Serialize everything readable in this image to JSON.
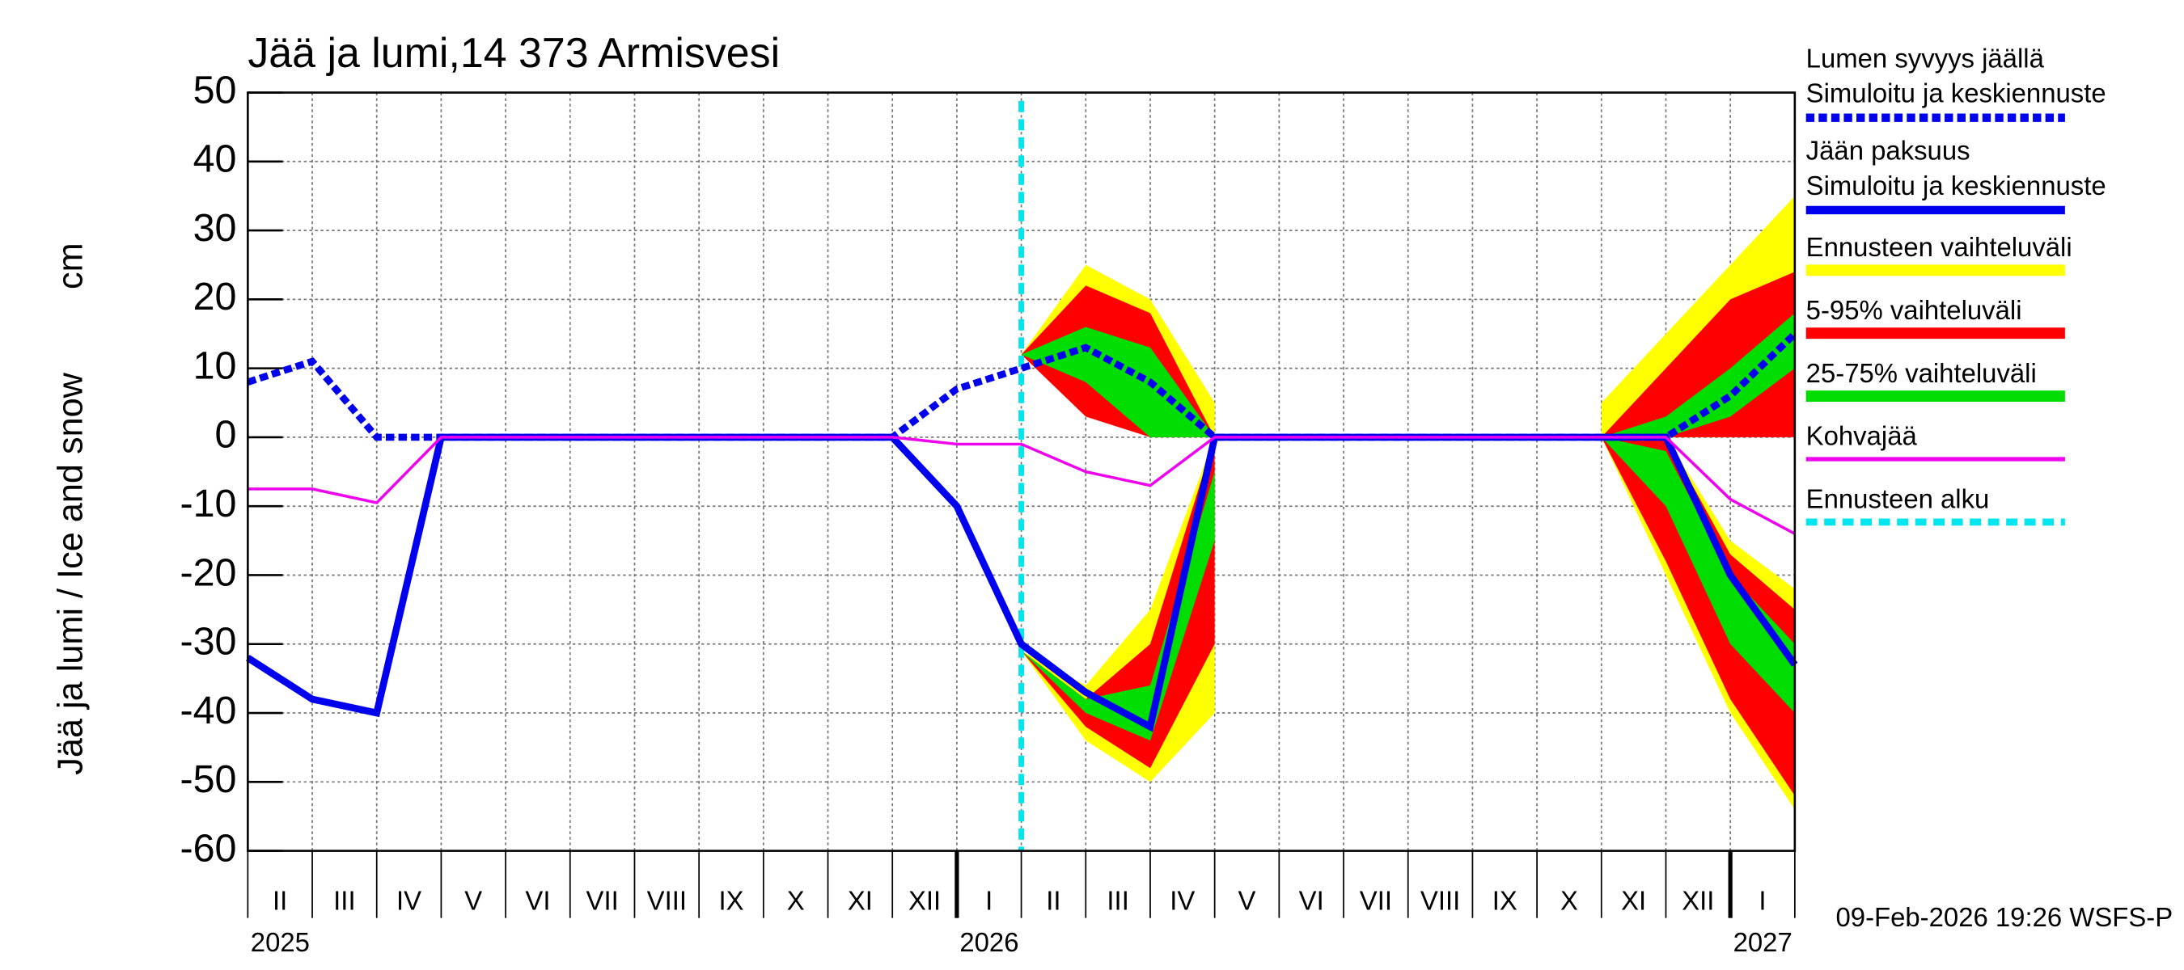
{
  "chart_data": {
    "type": "line",
    "title": "Jää ja lumi,14 373 Armisvesi",
    "y_label": "Jää ja lumi / Ice and snow",
    "y_unit": "cm",
    "footer": "09-Feb-2026 19:26 WSFS-P",
    "x": [
      "2025-02",
      "2025-03",
      "2025-04",
      "2025-05",
      "2025-06",
      "2025-07",
      "2025-08",
      "2025-09",
      "2025-10",
      "2025-11",
      "2025-12",
      "2026-01",
      "2026-02",
      "2026-03",
      "2026-04",
      "2026-05",
      "2026-06",
      "2026-07",
      "2026-08",
      "2026-09",
      "2026-10",
      "2026-11",
      "2026-12",
      "2027-01",
      "2027-02"
    ],
    "xlim": [
      "2025-02",
      "2027-02"
    ],
    "month_labels": [
      "II",
      "III",
      "IV",
      "V",
      "VI",
      "VII",
      "VIII",
      "IX",
      "X",
      "XI",
      "XII",
      "I",
      "II",
      "III",
      "IV",
      "V",
      "VI",
      "VII",
      "VIII",
      "IX",
      "X",
      "XI",
      "XII",
      "I"
    ],
    "year_labels": [
      {
        "value": "2025-02",
        "label": "2025"
      },
      {
        "value": "2026-01",
        "label": "2026"
      },
      {
        "value": "2027-01",
        "label": "2027"
      }
    ],
    "ylim": [
      -60,
      50
    ],
    "yticks": [
      -60,
      -50,
      -40,
      -30,
      -20,
      -10,
      0,
      10,
      20,
      30,
      40,
      50
    ],
    "grid": true,
    "forecast_start": {
      "name": "Ennusteen alku",
      "x": "2026-02",
      "color": "#00e5ee"
    },
    "bands": [
      {
        "name": "Ennusteen vaihteluväli",
        "color": "#ffff00",
        "ice_low": [
          null,
          null,
          null,
          null,
          null,
          null,
          null,
          null,
          null,
          null,
          null,
          null,
          -31,
          -44,
          -50,
          -40,
          null,
          null,
          null,
          null,
          null,
          0,
          -20,
          -40,
          -54
        ],
        "ice_high": [
          null,
          null,
          null,
          null,
          null,
          null,
          null,
          null,
          null,
          null,
          null,
          null,
          -31,
          -36,
          -25,
          0,
          null,
          null,
          null,
          null,
          null,
          0,
          0,
          -15,
          -22
        ],
        "snow_low": [
          null,
          null,
          null,
          null,
          null,
          null,
          null,
          null,
          null,
          null,
          null,
          null,
          12,
          5,
          0,
          0,
          null,
          null,
          null,
          null,
          null,
          0,
          0,
          0,
          5
        ],
        "snow_high": [
          null,
          null,
          null,
          null,
          null,
          null,
          null,
          null,
          null,
          null,
          null,
          null,
          12,
          25,
          20,
          5,
          null,
          null,
          null,
          null,
          null,
          5,
          15,
          25,
          35
        ]
      },
      {
        "name": "5-95% vaihteluväli",
        "color": "#ff0000",
        "ice_low": [
          null,
          null,
          null,
          null,
          null,
          null,
          null,
          null,
          null,
          null,
          null,
          null,
          -31,
          -42,
          -48,
          -30,
          null,
          null,
          null,
          null,
          null,
          0,
          -18,
          -38,
          -52
        ],
        "ice_high": [
          null,
          null,
          null,
          null,
          null,
          null,
          null,
          null,
          null,
          null,
          null,
          null,
          -31,
          -38,
          -30,
          0,
          null,
          null,
          null,
          null,
          null,
          0,
          0,
          -17,
          -25
        ],
        "snow_low": [
          null,
          null,
          null,
          null,
          null,
          null,
          null,
          null,
          null,
          null,
          null,
          null,
          12,
          3,
          0,
          0,
          null,
          null,
          null,
          null,
          null,
          0,
          0,
          0,
          0
        ],
        "snow_high": [
          null,
          null,
          null,
          null,
          null,
          null,
          null,
          null,
          null,
          null,
          null,
          null,
          12,
          22,
          18,
          0,
          null,
          null,
          null,
          null,
          null,
          0,
          10,
          20,
          24
        ]
      },
      {
        "name": "25-75% vaihteluväli",
        "color": "#00dd00",
        "ice_low": [
          null,
          null,
          null,
          null,
          null,
          null,
          null,
          null,
          null,
          null,
          null,
          null,
          -31,
          -40,
          -44,
          -15,
          null,
          null,
          null,
          null,
          null,
          0,
          -10,
          -30,
          -40
        ],
        "ice_high": [
          null,
          null,
          null,
          null,
          null,
          null,
          null,
          null,
          null,
          null,
          null,
          null,
          -31,
          -38,
          -36,
          -5,
          null,
          null,
          null,
          null,
          null,
          0,
          -2,
          -20,
          -30
        ],
        "snow_low": [
          null,
          null,
          null,
          null,
          null,
          null,
          null,
          null,
          null,
          null,
          null,
          null,
          12,
          8,
          0,
          0,
          null,
          null,
          null,
          null,
          null,
          0,
          0,
          3,
          10
        ],
        "snow_high": [
          null,
          null,
          null,
          null,
          null,
          null,
          null,
          null,
          null,
          null,
          null,
          null,
          12,
          16,
          13,
          0,
          null,
          null,
          null,
          null,
          null,
          0,
          3,
          10,
          18
        ]
      }
    ],
    "series": [
      {
        "name": "Lumen syvyys jäällä",
        "note": "Simuloitu ja keskiennuste",
        "color": "#0000ee",
        "dashed": true,
        "values": [
          8,
          11,
          0,
          0,
          0,
          0,
          0,
          0,
          0,
          0,
          0,
          7,
          10,
          13,
          8,
          0,
          0,
          0,
          0,
          0,
          0,
          0,
          0,
          6,
          15
        ]
      },
      {
        "name": "Jään paksuus",
        "note": "Simuloitu ja keskiennuste",
        "color": "#0000ee",
        "dashed": false,
        "values": [
          -32,
          -38,
          -40,
          0,
          0,
          0,
          0,
          0,
          0,
          0,
          0,
          -10,
          -30,
          -37,
          -42,
          0,
          0,
          0,
          0,
          0,
          0,
          0,
          0,
          -20,
          -33
        ]
      },
      {
        "name": "Kohvajää",
        "color": "#ee00ee",
        "dashed": false,
        "thin": true,
        "values": [
          -7.5,
          -7.5,
          -9.5,
          0,
          0,
          0,
          0,
          0,
          0,
          0,
          0,
          -1,
          -1,
          -5,
          -7,
          0,
          0,
          0,
          0,
          0,
          0,
          0,
          0,
          -9,
          -14
        ]
      }
    ]
  }
}
